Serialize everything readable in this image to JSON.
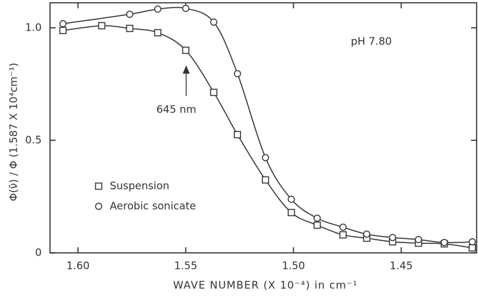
{
  "chart_data": {
    "type": "line",
    "x_label": "WAVE NUMBER (X 10⁻⁴) in cm⁻¹",
    "y_label": "Φ(ν̄) / Φ (1.587 X 10⁴cm⁻¹)",
    "annotations": [
      "pH 7.80",
      "645 nm"
    ],
    "xlim": [
      1.613,
      1.415
    ],
    "ylim": [
      0,
      1.111
    ],
    "xticks": [
      {
        "value": 1.6,
        "label": "1.60"
      },
      1.55,
      {
        "value": 1.5,
        "label": "1.50"
      },
      1.45
    ],
    "yticks": [
      0,
      0.5,
      {
        "value": 1,
        "label": "1.0"
      }
    ],
    "series": [
      {
        "name": "Suspension",
        "marker": "square",
        "color": "#333333",
        "x": [
          1.607,
          1.589,
          1.576,
          1.563,
          1.55,
          1.537,
          1.526,
          1.513,
          1.501,
          1.489,
          1.477,
          1.466,
          1.454,
          1.442,
          1.43,
          1.417
        ],
        "values": [
          0.988,
          1.009,
          0.997,
          0.978,
          0.9,
          0.713,
          0.525,
          0.324,
          0.179,
          0.123,
          0.08,
          0.065,
          0.049,
          0.043,
          0.04,
          0.022
        ]
      },
      {
        "name": "Aerobic sonicate",
        "marker": "circle",
        "color": "#333333",
        "x": [
          1.607,
          1.576,
          1.563,
          1.55,
          1.537,
          1.526,
          1.513,
          1.501,
          1.489,
          1.477,
          1.466,
          1.454,
          1.442,
          1.43,
          1.417
        ],
        "values": [
          1.018,
          1.06,
          1.083,
          1.086,
          1.025,
          0.796,
          0.423,
          0.238,
          0.154,
          0.114,
          0.083,
          0.068,
          0.059,
          0.046,
          0.049
        ]
      }
    ]
  }
}
